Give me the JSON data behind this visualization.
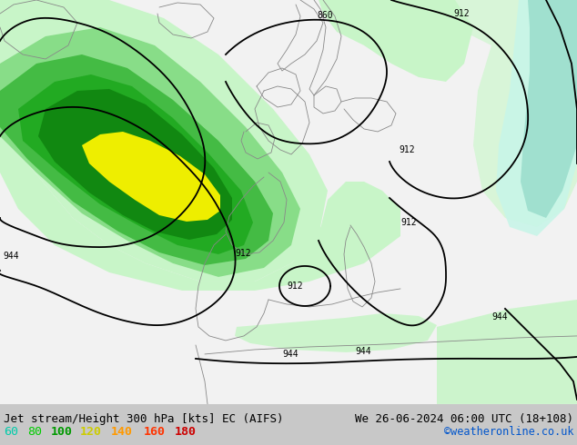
{
  "title_left": "Jet stream/Height 300 hPa [kts] EC (AIFS)",
  "title_right": "We 26-06-2024 06:00 UTC (18+108)",
  "credit": "©weatheronline.co.uk",
  "legend_values": [
    "60",
    "80",
    "100",
    "120",
    "140",
    "160",
    "180"
  ],
  "legend_colors": [
    "#00ccaa",
    "#00cc00",
    "#009900",
    "#cccc00",
    "#ff9900",
    "#ff3300",
    "#cc0000"
  ],
  "fig_width": 6.34,
  "fig_height": 4.9,
  "dpi": 100,
  "title_fontsize": 9.0,
  "legend_fontsize": 9.5,
  "credit_fontsize": 8.5,
  "map_background": "#f0f0f0",
  "bar_background": "#c8c8c8",
  "contour_lw": 1.3
}
